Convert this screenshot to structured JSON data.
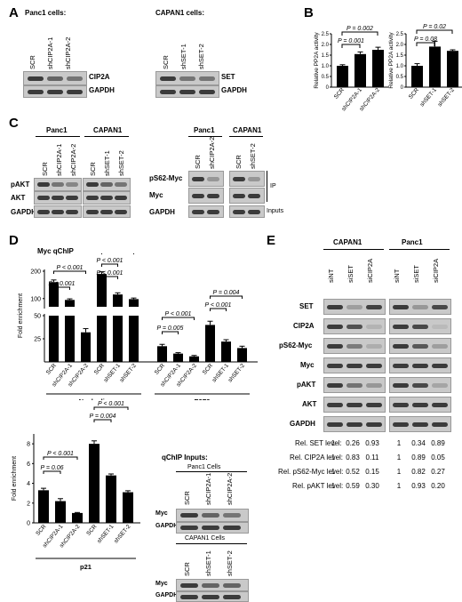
{
  "panels": {
    "A": "A",
    "B": "B",
    "C": "C",
    "D": "D",
    "E": "E"
  },
  "panelA": {
    "left": {
      "title": "Panc1  cells:",
      "lanes": [
        "SCR",
        "shCIP2A-1",
        "shCIP2A-2"
      ],
      "rows": [
        "CIP2A",
        "GAPDH"
      ]
    },
    "right": {
      "title": "CAPAN1  cells:",
      "lanes": [
        "SCR",
        "shSET-1",
        "shSET-2"
      ],
      "rows": [
        "SET",
        "GAPDH"
      ]
    }
  },
  "panelC": {
    "left": {
      "groups": [
        "Panc1",
        "CAPAN1"
      ],
      "lanes": [
        "SCR",
        "shCIP2A-1",
        "shCIP2A-2",
        "SCR",
        "shSET-1",
        "shSET-2"
      ],
      "rows": [
        "pAKT",
        "AKT",
        "GAPDH"
      ]
    },
    "right": {
      "groups": [
        "Panc1",
        "CAPAN1"
      ],
      "lanes": [
        "SCR",
        "shCIP2A-2",
        "SCR",
        "shSET-2"
      ],
      "rows": [
        "pS62-Myc",
        "Myc",
        "GAPDH"
      ],
      "ip": "IP",
      "inputs": "Inputs"
    }
  },
  "panelD": {
    "title": "Myc qChIP",
    "inputs_title": "qChIP  Inputs:",
    "panc_cells": "Panc1 Cells",
    "capan_cells": "CAPAN1 Cells",
    "lanes_panc": [
      "SCR",
      "shCIP2A-1",
      "shCIP2A-2"
    ],
    "lanes_capan": [
      "SCR",
      "shSET-1",
      "shSET-2"
    ],
    "rows": [
      "Myc",
      "GAPDH"
    ]
  },
  "panelE": {
    "groups": [
      "CAPAN1",
      "Panc1"
    ],
    "lanes": [
      "siNT",
      "siSET",
      "siCIP2A",
      "siNT",
      "siSET",
      "siCIP2A"
    ],
    "rows": [
      "SET",
      "CIP2A",
      "pS62-Myc",
      "Myc",
      "pAKT",
      "AKT",
      "GAPDH"
    ],
    "quant": [
      {
        "label": "Rel. SET level:",
        "values": [
          "1",
          "0.26",
          "0.93",
          "1",
          "0.34",
          "0.89"
        ]
      },
      {
        "label": "Rel. CIP2A level:",
        "values": [
          "1",
          "0.83",
          "0.11",
          "1",
          "0.89",
          "0.05"
        ]
      },
      {
        "label": "Rel. pS62-Myc level:",
        "values": [
          "1",
          "0.52",
          "0.15",
          "1",
          "0.82",
          "0.27"
        ]
      },
      {
        "label": "Rel. pAKT level:",
        "values": [
          "1",
          "0.59",
          "0.30",
          "1",
          "0.93",
          "0.20"
        ]
      }
    ]
  },
  "chart_data": [
    {
      "type": "bar",
      "id": "B-left",
      "categories": [
        "SCR",
        "shCIP2A-1",
        "shCIP2A-2"
      ],
      "values": [
        1.0,
        1.55,
        1.75
      ],
      "errors": [
        0.05,
        0.1,
        0.12
      ],
      "ylabel": "Relative PP2A activity",
      "ylim": [
        0,
        2.5
      ],
      "yticks": [
        0,
        0.5,
        1.0,
        1.5,
        2.0,
        2.5
      ],
      "yticklabels": [
        "0",
        "0.5",
        "1.0",
        "1.5",
        "2.0",
        "2.5"
      ],
      "annotations": [
        "P = 0.001",
        "P = 0.002"
      ]
    },
    {
      "type": "bar",
      "id": "B-right",
      "categories": [
        "SCR",
        "shSET-1",
        "shSET-2"
      ],
      "values": [
        1.0,
        1.9,
        1.7
      ],
      "errors": [
        0.1,
        0.25,
        0.05
      ],
      "ylabel": "Relative PP2A activity",
      "ylim": [
        0,
        2.5
      ],
      "yticks": [
        0,
        0.5,
        1.0,
        1.5,
        2.0,
        2.5
      ],
      "yticklabels": [
        "0",
        "0.5",
        "1.0",
        "1.5",
        "2.0",
        "2.5"
      ],
      "annotations": [
        "P = 0.08",
        "P = 0.02"
      ]
    },
    {
      "type": "bar",
      "id": "D-top",
      "categories": [
        "SCR",
        "shCIP2A-1",
        "shCIP2A-2",
        "SCR",
        "shSET-1",
        "shSET-2",
        "SCR",
        "shCIP2A-1",
        "shCIP2A-2",
        "SCR",
        "shSET-1",
        "shSET-2"
      ],
      "values": [
        160,
        95,
        32,
        190,
        115,
        98,
        17,
        9,
        6,
        40,
        22,
        15
      ],
      "errors": [
        8,
        4,
        4,
        8,
        6,
        4,
        2,
        1,
        1,
        4,
        2,
        2
      ],
      "ylabel": "Fold enrichment",
      "yticks": [
        25,
        50,
        100,
        200
      ],
      "groups": [
        "Nucleolin",
        "E2F2"
      ],
      "annotations": [
        "P < 0.001",
        "P < 0.001",
        "P < 0.001",
        "P < 0.001",
        "P < 0.001",
        "P = 0.005",
        "P < 0.001",
        "P < 0.001",
        "P = 0.004"
      ]
    },
    {
      "type": "bar",
      "id": "D-bottom",
      "categories": [
        "SCR",
        "shCIP2A-1",
        "shCIP2A-2",
        "SCR",
        "shSET-1",
        "shSET-2"
      ],
      "values": [
        3.3,
        2.2,
        1.0,
        8.0,
        4.8,
        3.1
      ],
      "errors": [
        0.2,
        0.25,
        0.05,
        0.3,
        0.15,
        0.15
      ],
      "ylabel": "Fold enrichment",
      "ylim": [
        0,
        9
      ],
      "yticks": [
        0,
        2,
        4,
        6,
        8
      ],
      "yticklabels": [
        "0",
        "2",
        "4",
        "6",
        "8"
      ],
      "groups": [
        "p21"
      ],
      "annotations": [
        "P = 0.06",
        "P < 0.001",
        "P = 0.004",
        "P < 0.001"
      ]
    }
  ]
}
